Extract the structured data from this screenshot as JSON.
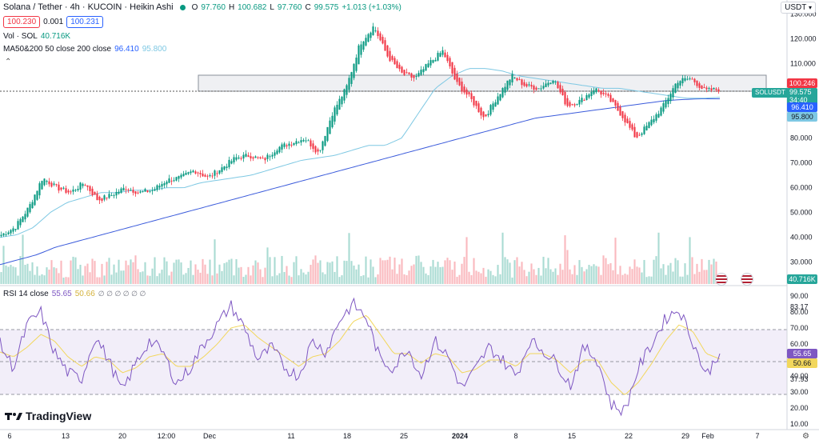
{
  "header": {
    "symbol": "Solana / Tether · 4h · KUCOIN · Heikin Ashi",
    "open_label": "O",
    "open": "97.760",
    "high_label": "H",
    "high": "100.682",
    "low_label": "L",
    "low": "97.760",
    "close_label": "C",
    "close": "99.575",
    "change": "+1.013 (+1.03%)",
    "bid": "100.230",
    "spread": "0.001",
    "ask": "100.231"
  },
  "indicators": {
    "vol_label": "Vol · SOL",
    "vol_value": "40.716K",
    "ma_label": "MA50&200 50 close 200 close",
    "ma50": "96.410",
    "ma200": "95.800",
    "rsi_label": "RSI 14 close",
    "rsi_value": "55.65",
    "rsi_ma": "50.66",
    "rsi_extra": "∅ ∅ ∅ ∅ ∅ ∅"
  },
  "currency": "USDT",
  "price_axis": [
    "130.000",
    "120.000",
    "110.000",
    "100.000",
    "90.000",
    "80.000",
    "70.000",
    "60.000",
    "50.000",
    "40.000",
    "30.000"
  ],
  "price_tags": {
    "price": "100.246",
    "symbol_tag": "SOLUSDT",
    "close_tag": "99.575",
    "countdown": "34:40",
    "ma50": "96.410",
    "ma200": "95.800",
    "volume": "40.716K"
  },
  "rsi_axis": [
    "90.00",
    "83.17",
    "80.00",
    "70.00",
    "60.00",
    "50.00",
    "40.00",
    "37.93",
    "30.00",
    "20.00",
    "10.00"
  ],
  "rsi_tags": {
    "rsi": "55.65",
    "ma": "50.66"
  },
  "time_axis": [
    "6",
    "13",
    "20",
    "12:00",
    "Dec",
    "11",
    "18",
    "25",
    "2024",
    "8",
    "15",
    "22",
    "29",
    "Feb",
    "7"
  ],
  "brand": "TradingView",
  "colors": {
    "up": "#089981",
    "down": "#f23645",
    "ma50": "#7ec8e3",
    "ma200": "#3b5bdb",
    "rsi": "#7e57c2",
    "rsi_ma": "#f2d75c"
  },
  "chart_data": [
    {
      "type": "candlestick",
      "title": "Solana / Tether · 4h · KUCOIN · Heikin Ashi",
      "ylim": [
        27,
        133
      ],
      "x": [
        "6",
        "13",
        "20",
        "12:00",
        "Dec",
        "11",
        "18",
        "25",
        "2024",
        "8",
        "15",
        "22",
        "29",
        "Feb",
        "7"
      ],
      "close_path": [
        41,
        44,
        52,
        64,
        60,
        58,
        62,
        55,
        57,
        60,
        58,
        59,
        63,
        64,
        67,
        64,
        68,
        72,
        73,
        71,
        76,
        78,
        80,
        74,
        90,
        100,
        118,
        125,
        113,
        106,
        104,
        110,
        115,
        102,
        96,
        88,
        97,
        105,
        101,
        100,
        104,
        93,
        95,
        100,
        96,
        89,
        80,
        86,
        93,
        103,
        104,
        99,
        99.6
      ],
      "ma50": [
        40,
        41,
        44,
        50,
        54,
        56,
        58,
        58,
        59,
        59,
        60,
        60,
        62,
        63,
        64,
        65,
        67,
        69,
        71,
        72,
        73,
        75,
        77,
        77,
        80,
        90,
        100,
        105,
        108,
        108,
        107,
        105,
        104,
        103,
        102,
        101,
        100,
        100,
        99,
        98,
        97,
        96,
        96,
        96.4
      ],
      "ma200": [
        29,
        31,
        33,
        36,
        38,
        40,
        42,
        44,
        46,
        48,
        50,
        52,
        54,
        56,
        58,
        60,
        62,
        64,
        66,
        68,
        70,
        72,
        74,
        76,
        78,
        80,
        82,
        84,
        86,
        88,
        89,
        90,
        91,
        92,
        93,
        94,
        95,
        95.5,
        95.8,
        95.8
      ]
    },
    {
      "type": "line",
      "title": "RSI 14 close",
      "ylim": [
        10,
        95
      ],
      "bands": [
        30,
        70
      ],
      "series": [
        {
          "name": "RSI",
          "values": [
            60,
            45,
            72,
            80,
            55,
            42,
            38,
            65,
            50,
            30,
            48,
            62,
            55,
            35,
            45,
            60,
            72,
            84,
            70,
            50,
            58,
            45,
            40,
            62,
            55,
            75,
            85,
            76,
            50,
            45,
            58,
            40,
            62,
            52,
            32,
            44,
            58,
            50,
            40,
            62,
            56,
            48,
            34,
            58,
            50,
            22,
            18,
            45,
            60,
            76,
            82,
            62,
            40,
            55.65
          ]
        },
        {
          "name": "MA",
          "values": [
            55,
            52,
            58,
            66,
            62,
            52,
            46,
            52,
            50,
            42,
            45,
            52,
            54,
            46,
            46,
            52,
            60,
            70,
            72,
            64,
            58,
            52,
            46,
            52,
            54,
            62,
            74,
            78,
            66,
            54,
            54,
            48,
            54,
            52,
            42,
            44,
            50,
            50,
            46,
            54,
            54,
            50,
            42,
            50,
            50,
            36,
            28,
            36,
            48,
            62,
            72,
            68,
            54,
            50.66
          ]
        }
      ]
    }
  ]
}
